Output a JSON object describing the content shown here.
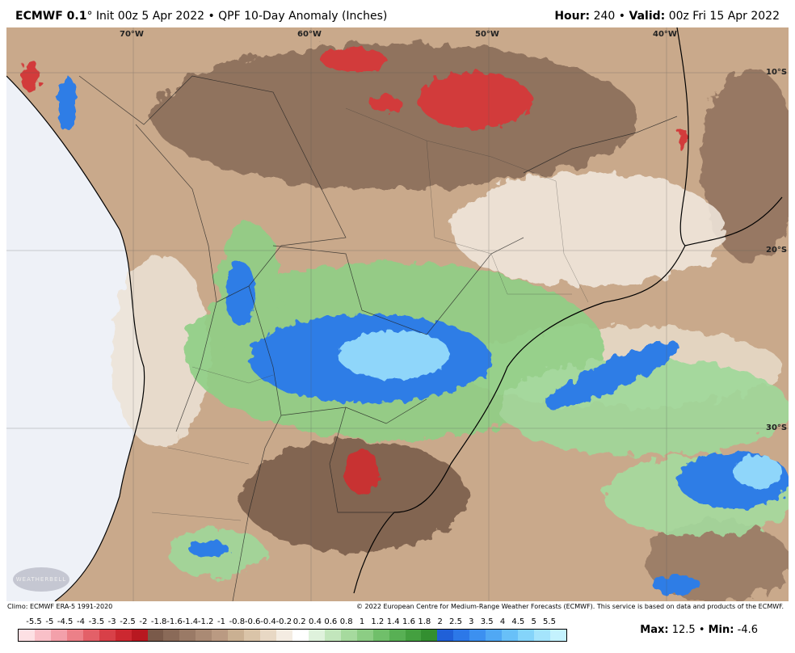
{
  "header": {
    "model": "ECMWF 0.1",
    "degree": "°",
    "init": " Init 00z 5 Apr 2022 • QPF 10-Day Anomaly (Inches)",
    "hour_label": "Hour:",
    "hour_value": "240",
    "valid_label": "Valid:",
    "valid_value": "00z Fri 15 Apr 2022"
  },
  "map": {
    "lon_labels": [
      "70°W",
      "60°W",
      "50°W",
      "40°W"
    ],
    "lat_labels": [
      "10°S",
      "20°S",
      "30°S"
    ],
    "logo_text": "WEATHERBELL"
  },
  "footer": {
    "climo": "Climo: ECMWF ERA-5 1991-2020",
    "copyright": "© 2022 European Centre for Medium-Range Weather Forecasts (ECMWF). This service is based on data and products of the ECMWF."
  },
  "scale": {
    "labels": [
      "-5.5",
      "-5",
      "-4.5",
      "-4",
      "-3.5",
      "-3",
      "-2.5",
      "-2",
      "-1.8",
      "-1.6",
      "-1.4",
      "-1.2",
      "-1",
      "-0.8",
      "-0.6",
      "-0.4",
      "-0.2",
      "0.2",
      "0.4",
      "0.6",
      "0.8",
      "1",
      "1.2",
      "1.4",
      "1.6",
      "1.8",
      "2",
      "2.5",
      "3",
      "3.5",
      "4",
      "4.5",
      "5",
      "5.5"
    ],
    "colors": [
      "#fde0e4",
      "#f9c0c8",
      "#f3a0aa",
      "#ec8088",
      "#e36068",
      "#d84048",
      "#cc2830",
      "#b81820",
      "#7a5a4a",
      "#8a6a58",
      "#9a7a66",
      "#aa8a74",
      "#ba9a82",
      "#cab092",
      "#dac4a8",
      "#e8d8c4",
      "#f4ece2",
      "#ffffff",
      "#dff2dc",
      "#c2e6bc",
      "#a6da9e",
      "#8ccd84",
      "#70bf6a",
      "#58b054",
      "#44a040",
      "#338f30",
      "#2060d8",
      "#2c78e8",
      "#3c90f0",
      "#50a8f4",
      "#68c0f8",
      "#84d4fa",
      "#a4e4fc",
      "#c4f2fe"
    ]
  },
  "stats": {
    "max_label": "Max:",
    "max_value": "12.5",
    "min_label": "Min:",
    "min_value": "-4.6"
  }
}
